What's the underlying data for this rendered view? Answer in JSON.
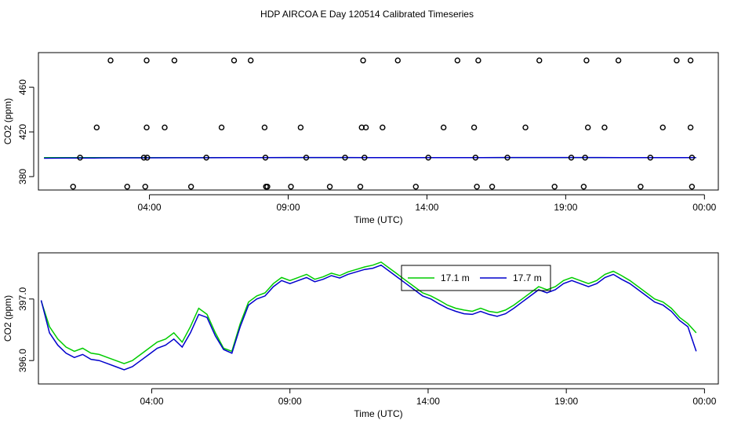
{
  "title": "HDP AIRCOA E  Day 120514  Calibrated Timeseries",
  "colors": {
    "series_17_1": "#00cc00",
    "series_17_7": "#0000cc",
    "axis": "#000000"
  },
  "chart_data": [
    {
      "type": "scatter",
      "xlabel": "Time (UTC)",
      "ylabel": "CO2 (ppm)",
      "xticks": [
        4,
        9,
        14,
        19,
        24
      ],
      "xtick_labels": [
        "04:00",
        "09:00",
        "14:00",
        "19:00",
        "00:00"
      ],
      "yticks": [
        380,
        420,
        460
      ],
      "yticks_text": [
        "380",
        "420",
        "460"
      ],
      "xlim": [
        0,
        24.5
      ],
      "ylim": [
        368,
        491
      ],
      "points_time_h": [
        1.5,
        1.25,
        2.1,
        2.6,
        3.2,
        3.8,
        3.85,
        3.9,
        3.9,
        3.92,
        4.55,
        4.9,
        5.5,
        6.05,
        6.6,
        7.05,
        7.65,
        8.15,
        8.18,
        8.2,
        8.25,
        9.65,
        9.1,
        9.45,
        10.5,
        11.05,
        11.6,
        11.65,
        11.7,
        11.75,
        11.8,
        12.4,
        12.95,
        13.6,
        14.05,
        14.6,
        15.1,
        15.7,
        15.75,
        15.8,
        15.85,
        16.35,
        16.9,
        17.55,
        18.05,
        18.6,
        19.2,
        19.65,
        19.7,
        19.75,
        19.8,
        20.4,
        20.9,
        21.7,
        22.05,
        22.5,
        23.0,
        23.5,
        23.5,
        23.55,
        23.55
      ],
      "points_co2_ppm": [
        397,
        371,
        424,
        484,
        371,
        397,
        371,
        424,
        484,
        397,
        424,
        484,
        371,
        397,
        424,
        484,
        484,
        424,
        397,
        371,
        371,
        397,
        371,
        424,
        371,
        397,
        371,
        424,
        484,
        397,
        424,
        424,
        484,
        371,
        397,
        424,
        484,
        424,
        397,
        371,
        484,
        371,
        397,
        424,
        484,
        371,
        397,
        371,
        397,
        484,
        424,
        424,
        484,
        371,
        397,
        424,
        484,
        484,
        424,
        397,
        371
      ],
      "series": [
        {
          "name": "17.1 m",
          "color": "#00cc00",
          "x": [
            0.2,
            1.0,
            2.0,
            3.0,
            4.0,
            5.0,
            6.0,
            7.0,
            8.0,
            9.0,
            10.0,
            11.0,
            12.0,
            13.0,
            14.0,
            15.0,
            16.0,
            17.0,
            18.0,
            19.0,
            20.0,
            21.0,
            22.0,
            23.0,
            23.7
          ],
          "y": [
            397,
            397,
            397,
            397,
            397,
            397,
            397,
            397,
            397,
            397,
            397,
            397,
            397,
            397,
            397,
            397,
            397,
            397,
            397,
            397,
            397,
            397,
            397,
            397,
            397
          ]
        },
        {
          "name": "17.7 m",
          "color": "#0000cc",
          "x": [
            0.2,
            1.0,
            2.0,
            3.0,
            4.0,
            5.0,
            6.0,
            7.0,
            8.0,
            9.0,
            10.0,
            11.0,
            12.0,
            13.0,
            14.0,
            15.0,
            16.0,
            17.0,
            18.0,
            19.0,
            20.0,
            21.0,
            22.0,
            23.0,
            23.7
          ],
          "y": [
            396.5,
            396.6,
            396.7,
            396.8,
            396.8,
            396.9,
            396.9,
            397,
            397,
            397.1,
            397.1,
            397.1,
            397,
            397,
            397,
            397,
            397,
            397.1,
            397.1,
            397.1,
            397.1,
            397,
            397,
            397,
            397
          ]
        }
      ]
    },
    {
      "type": "line",
      "xlabel": "Time (UTC)",
      "ylabel": "CO2 (ppm)",
      "xticks": [
        4,
        9,
        14,
        19,
        24
      ],
      "xtick_labels": [
        "04:00",
        "09:00",
        "14:00",
        "19:00",
        "00:00"
      ],
      "yticks": [
        396.0,
        397.0
      ],
      "yticks_text": [
        "396.0",
        "397.0"
      ],
      "xlim": [
        -0.1,
        24.5
      ],
      "ylim": [
        395.62,
        397.75
      ],
      "legend_position": "top-center",
      "series": [
        {
          "name": "17.1 m",
          "color": "#00cc00",
          "x": [
            0.0,
            0.3,
            0.6,
            0.9,
            1.2,
            1.5,
            1.8,
            2.1,
            2.4,
            2.7,
            3.0,
            3.3,
            3.6,
            3.9,
            4.2,
            4.5,
            4.8,
            5.1,
            5.4,
            5.7,
            6.0,
            6.3,
            6.6,
            6.9,
            7.2,
            7.5,
            7.8,
            8.1,
            8.4,
            8.7,
            9.0,
            9.3,
            9.6,
            9.9,
            10.2,
            10.5,
            10.8,
            11.1,
            11.4,
            11.7,
            12.0,
            12.3,
            12.6,
            12.9,
            13.2,
            13.5,
            13.8,
            14.1,
            14.4,
            14.7,
            15.0,
            15.3,
            15.6,
            15.9,
            16.2,
            16.5,
            16.8,
            17.1,
            17.4,
            17.7,
            18.0,
            18.3,
            18.6,
            18.9,
            19.2,
            19.5,
            19.8,
            20.1,
            20.4,
            20.7,
            21.0,
            21.3,
            21.6,
            21.9,
            22.2,
            22.5,
            22.8,
            23.1,
            23.4,
            23.7
          ],
          "y": [
            396.97,
            396.55,
            396.35,
            396.22,
            396.15,
            396.2,
            396.12,
            396.1,
            396.05,
            396.0,
            395.95,
            396.0,
            396.1,
            396.2,
            396.3,
            396.35,
            396.45,
            396.3,
            396.55,
            396.85,
            396.75,
            396.45,
            396.2,
            396.15,
            396.6,
            396.95,
            397.05,
            397.1,
            397.25,
            397.35,
            397.3,
            397.35,
            397.4,
            397.32,
            397.36,
            397.42,
            397.38,
            397.44,
            397.48,
            397.52,
            397.55,
            397.6,
            397.5,
            397.4,
            397.3,
            397.2,
            397.1,
            397.05,
            396.98,
            396.9,
            396.85,
            396.82,
            396.8,
            396.85,
            396.8,
            396.78,
            396.82,
            396.9,
            397.0,
            397.1,
            397.2,
            397.15,
            397.2,
            397.3,
            397.35,
            397.3,
            397.25,
            397.3,
            397.4,
            397.45,
            397.38,
            397.3,
            397.2,
            397.1,
            397.0,
            396.95,
            396.85,
            396.7,
            396.6,
            396.45
          ]
        },
        {
          "name": "17.7 m",
          "color": "#0000cc",
          "x": [
            0.0,
            0.3,
            0.6,
            0.9,
            1.2,
            1.5,
            1.8,
            2.1,
            2.4,
            2.7,
            3.0,
            3.3,
            3.6,
            3.9,
            4.2,
            4.5,
            4.8,
            5.1,
            5.4,
            5.7,
            6.0,
            6.3,
            6.6,
            6.9,
            7.2,
            7.5,
            7.8,
            8.1,
            8.4,
            8.7,
            9.0,
            9.3,
            9.6,
            9.9,
            10.2,
            10.5,
            10.8,
            11.1,
            11.4,
            11.7,
            12.0,
            12.3,
            12.6,
            12.9,
            13.2,
            13.5,
            13.8,
            14.1,
            14.4,
            14.7,
            15.0,
            15.3,
            15.6,
            15.9,
            16.2,
            16.5,
            16.8,
            17.1,
            17.4,
            17.7,
            18.0,
            18.3,
            18.6,
            18.9,
            19.2,
            19.5,
            19.8,
            20.1,
            20.4,
            20.7,
            21.0,
            21.3,
            21.6,
            21.9,
            22.2,
            22.5,
            22.8,
            23.1,
            23.4,
            23.7
          ],
          "y": [
            396.98,
            396.45,
            396.25,
            396.12,
            396.05,
            396.1,
            396.02,
            396.0,
            395.95,
            395.9,
            395.85,
            395.9,
            396.0,
            396.1,
            396.2,
            396.25,
            396.35,
            396.22,
            396.45,
            396.75,
            396.7,
            396.4,
            396.18,
            396.12,
            396.55,
            396.9,
            397.0,
            397.05,
            397.2,
            397.3,
            397.25,
            397.3,
            397.35,
            397.28,
            397.32,
            397.38,
            397.34,
            397.4,
            397.44,
            397.48,
            397.5,
            397.55,
            397.45,
            397.35,
            397.25,
            397.15,
            397.05,
            397.0,
            396.92,
            396.85,
            396.8,
            396.76,
            396.75,
            396.8,
            396.75,
            396.72,
            396.76,
            396.85,
            396.95,
            397.05,
            397.15,
            397.1,
            397.15,
            397.25,
            397.3,
            397.25,
            397.2,
            397.25,
            397.35,
            397.4,
            397.32,
            397.25,
            397.15,
            397.05,
            396.95,
            396.9,
            396.8,
            396.65,
            396.55,
            396.15
          ]
        }
      ]
    }
  ]
}
